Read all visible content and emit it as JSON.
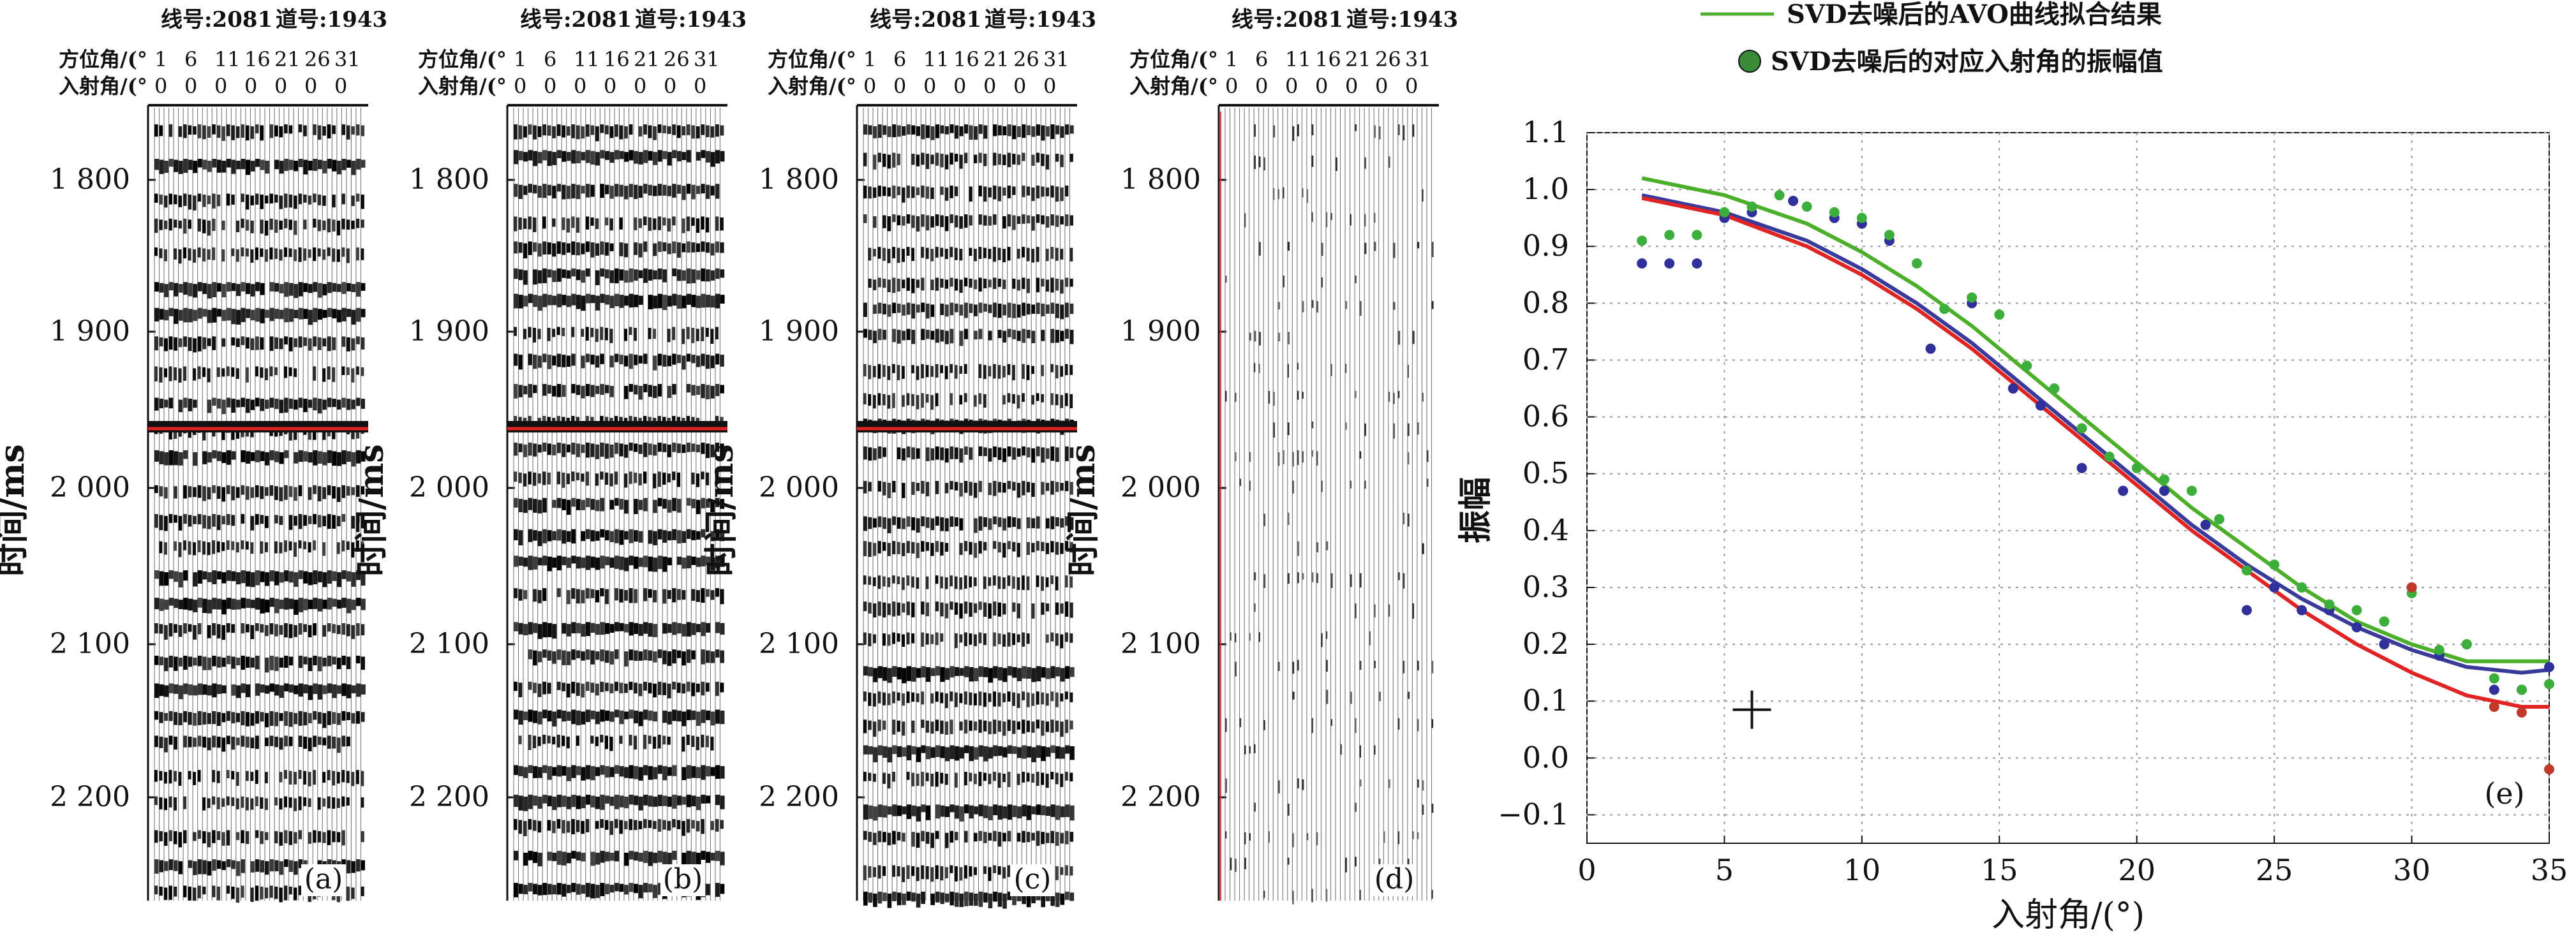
{
  "seismic": {
    "line_label": "线号:2081",
    "trace_label": "道号:1943",
    "azimuth_label": "方位角/(°",
    "incidence_label": "入射角/(°",
    "azimuth_values": [
      "1",
      "6",
      "11",
      "16",
      "21",
      "26",
      "31"
    ],
    "incidence_values": [
      "0",
      "0",
      "0",
      "0",
      "0",
      "0",
      "0"
    ],
    "time_ticks": [
      "1 800",
      "1 900",
      "2 000",
      "2 100",
      "2 200"
    ],
    "time_axis_label": "时间/ms",
    "panels": [
      {
        "id": "a",
        "label": "(a)"
      },
      {
        "id": "b",
        "label": "(b)"
      },
      {
        "id": "c",
        "label": "(c)"
      },
      {
        "id": "d",
        "label": "(d)"
      }
    ]
  },
  "chart_data": {
    "type": "line",
    "title": "",
    "xlabel": "入射角/(°)",
    "ylabel": "振幅",
    "xlim": [
      0,
      35
    ],
    "ylim": [
      -0.15,
      1.1
    ],
    "x_ticks": [
      "0",
      "5",
      "10",
      "15",
      "20",
      "25",
      "30",
      "35"
    ],
    "y_ticks": [
      "−0.1",
      "0.0",
      "0.1",
      "0.2",
      "0.3",
      "0.4",
      "0.5",
      "0.6",
      "0.7",
      "0.8",
      "0.9",
      "1.0",
      "1.1"
    ],
    "grid": true,
    "legend_position": "top",
    "legend": [
      {
        "label": "SVD去噪后的AVO曲线拟合结果",
        "marker": "line",
        "color": "#4caf2a"
      },
      {
        "label": "SVD去噪后的对应入射角的振幅值",
        "marker": "circle",
        "color": "#3a8a3a"
      }
    ],
    "panel_label": "(e)",
    "series": [
      {
        "color": "#4caf2a",
        "kind": "line",
        "x": [
          2,
          5,
          8,
          10,
          12,
          14,
          16,
          18,
          20,
          22,
          24,
          26,
          28,
          30,
          32,
          34,
          35
        ],
        "values": [
          1.02,
          0.99,
          0.94,
          0.89,
          0.83,
          0.76,
          0.68,
          0.6,
          0.52,
          0.44,
          0.37,
          0.3,
          0.24,
          0.2,
          0.17,
          0.17,
          0.17
        ]
      },
      {
        "color": "#3a3a9a",
        "kind": "line",
        "x": [
          2,
          5,
          8,
          10,
          12,
          14,
          16,
          18,
          20,
          22,
          24,
          26,
          28,
          30,
          32,
          34,
          35
        ],
        "values": [
          0.99,
          0.96,
          0.91,
          0.86,
          0.8,
          0.73,
          0.65,
          0.57,
          0.49,
          0.41,
          0.34,
          0.28,
          0.23,
          0.19,
          0.16,
          0.15,
          0.155
        ]
      },
      {
        "color": "#e02424",
        "kind": "line",
        "x": [
          2,
          5,
          8,
          10,
          12,
          14,
          16,
          18,
          20,
          22,
          24,
          26,
          28,
          30,
          32,
          34,
          35
        ],
        "values": [
          0.985,
          0.955,
          0.9,
          0.85,
          0.79,
          0.72,
          0.64,
          0.56,
          0.48,
          0.4,
          0.33,
          0.26,
          0.2,
          0.15,
          0.11,
          0.09,
          0.09
        ]
      },
      {
        "color": "#30309a",
        "kind": "points",
        "x": [
          2,
          3,
          4,
          5,
          6,
          7.5,
          9,
          10,
          11,
          12.5,
          14,
          15.5,
          16.5,
          18,
          19.5,
          21,
          22.5,
          24,
          25,
          26,
          27,
          28,
          29,
          30,
          31,
          32,
          33,
          34,
          35
        ],
        "values": [
          0.87,
          0.87,
          0.87,
          0.95,
          0.96,
          0.98,
          0.95,
          0.94,
          0.91,
          0.72,
          0.8,
          0.65,
          0.62,
          0.51,
          0.47,
          0.47,
          0.41,
          0.26,
          0.3,
          0.26,
          0.26,
          0.23,
          0.2,
          0.3,
          0.18,
          0.2,
          0.12,
          0.12,
          0.16
        ]
      },
      {
        "color": "#3cae3c",
        "kind": "points",
        "x": [
          2,
          3,
          4,
          5,
          6,
          7,
          8,
          9,
          10,
          11,
          12,
          13,
          14,
          15,
          16,
          17,
          18,
          19,
          20,
          21,
          22,
          23,
          24,
          25,
          26,
          27,
          28,
          29,
          30,
          31,
          32,
          33,
          34,
          35
        ],
        "values": [
          0.91,
          0.92,
          0.92,
          0.96,
          0.97,
          0.99,
          0.97,
          0.96,
          0.95,
          0.92,
          0.87,
          0.79,
          0.81,
          0.78,
          0.69,
          0.65,
          0.58,
          0.53,
          0.51,
          0.49,
          0.47,
          0.42,
          0.33,
          0.34,
          0.3,
          0.27,
          0.26,
          0.24,
          0.29,
          0.19,
          0.2,
          0.14,
          0.12,
          0.13
        ]
      },
      {
        "color": "#c0392b",
        "kind": "points",
        "x": [
          30,
          33,
          34,
          35
        ],
        "values": [
          0.3,
          0.09,
          0.08,
          -0.02
        ]
      }
    ]
  }
}
